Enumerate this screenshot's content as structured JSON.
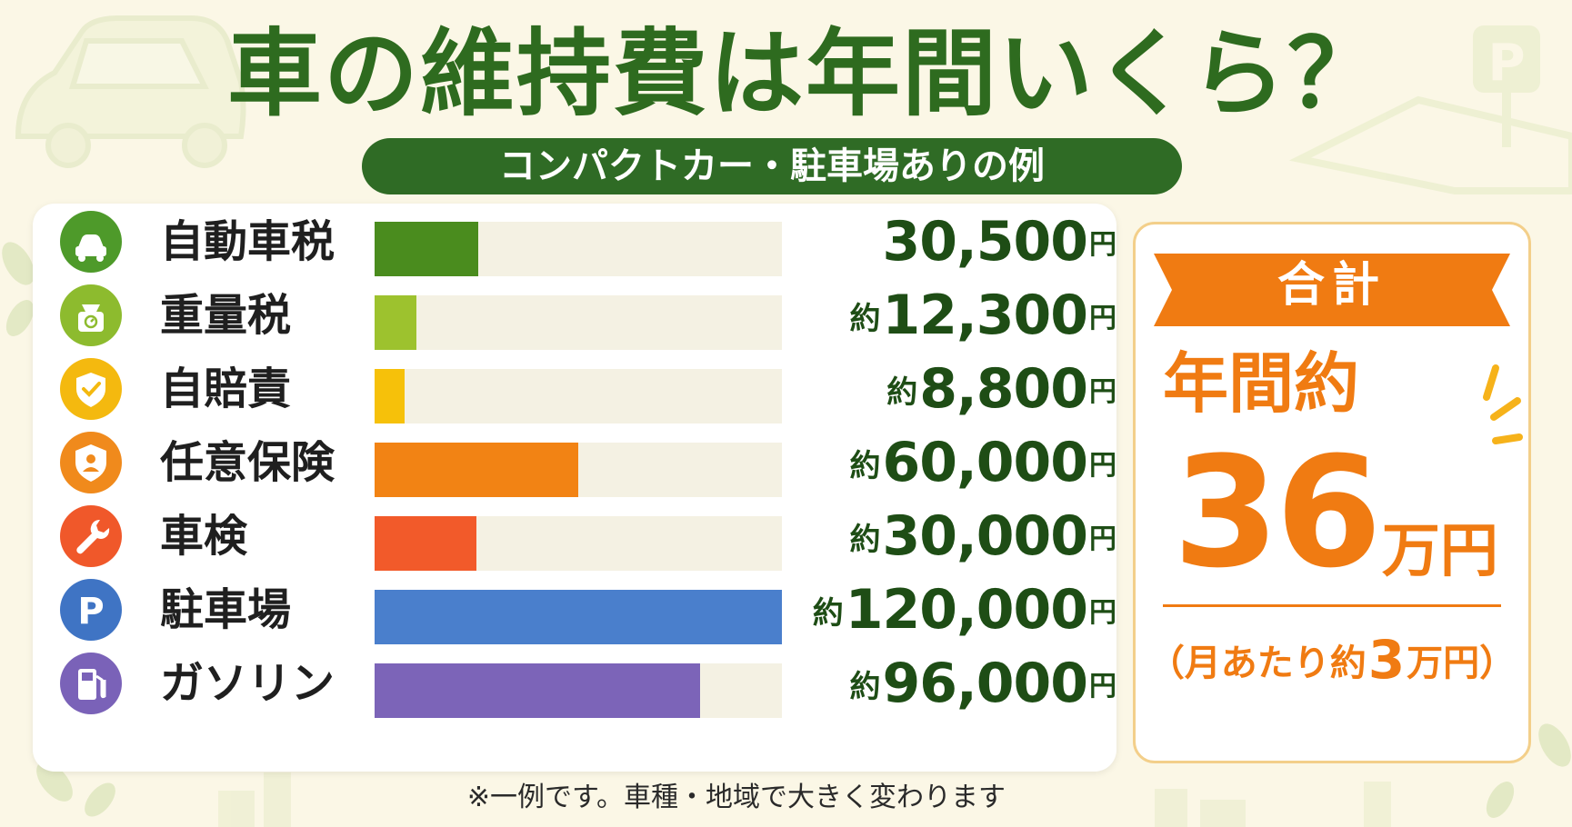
{
  "title": "車の維持費は年間いくら？",
  "subtitle": "コンパクトカー・駐車場ありの例",
  "colors": {
    "title": "#2e6b1f",
    "subtitle_bg": "#2f6b25",
    "total_orange": "#f07b12",
    "bar_track": "#f4f1e3"
  },
  "chart_data": {
    "type": "bar",
    "orientation": "horizontal",
    "unit": "円",
    "categories": [
      "自動車税",
      "重量税",
      "自賠責",
      "任意保険",
      "車検",
      "駐車場",
      "ガソリン"
    ],
    "values": [
      30500,
      12300,
      8800,
      60000,
      30000,
      120000,
      96000
    ],
    "xlim": [
      0,
      120000
    ],
    "items": [
      {
        "label": "自動車税",
        "prefix": "",
        "amount": "30,500",
        "unit": "円",
        "value": 30500,
        "color": "#4a8c1e",
        "icon": "car-icon",
        "icon_bg": "#4e9a2a"
      },
      {
        "label": "重量税",
        "prefix": "約",
        "amount": "12,300",
        "unit": "円",
        "value": 12300,
        "color": "#9dc22e",
        "icon": "scale-icon",
        "icon_bg": "#8dbb2e"
      },
      {
        "label": "自賠責",
        "prefix": "約",
        "amount": "8,800",
        "unit": "円",
        "value": 8800,
        "color": "#f6c10a",
        "icon": "shield-check-icon",
        "icon_bg": "#f4b90f"
      },
      {
        "label": "任意保険",
        "prefix": "約",
        "amount": "60,000",
        "unit": "円",
        "value": 60000,
        "color": "#f28314",
        "icon": "shield-person-icon",
        "icon_bg": "#f08a1c"
      },
      {
        "label": "車検",
        "prefix": "約",
        "amount": "30,000",
        "unit": "円",
        "value": 30000,
        "color": "#f25a2a",
        "icon": "wrench-icon",
        "icon_bg": "#f0582a"
      },
      {
        "label": "駐車場",
        "prefix": "約",
        "amount": "120,000",
        "unit": "円",
        "value": 120000,
        "color": "#4a7fcc",
        "icon": "parking-icon",
        "icon_bg": "#3f74c4"
      },
      {
        "label": "ガソリン",
        "prefix": "約",
        "amount": "96,000",
        "unit": "円",
        "value": 96000,
        "color": "#7c64b8",
        "icon": "fuel-pump-icon",
        "icon_bg": "#7a62b8"
      }
    ]
  },
  "total": {
    "banner": "合計",
    "prefix": "年間約",
    "amount": "36",
    "unit": "万円",
    "monthly_open": "（",
    "monthly_label": "月あたり約",
    "monthly_amount": "3",
    "monthly_unit": "万円",
    "monthly_close": "）"
  },
  "note": "※一例です。車種・地域で大きく変わります"
}
